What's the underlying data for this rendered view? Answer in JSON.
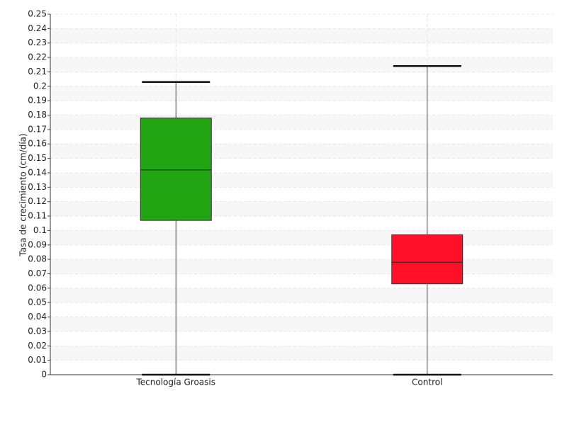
{
  "chart_data": {
    "type": "box",
    "y_label": "Tasa de crecimiento (cm/día)",
    "categories": [
      "Tecnología Groasis",
      "Control"
    ],
    "boxes": [
      {
        "min": 0,
        "q1": 0.107,
        "median": 0.142,
        "q3": 0.178,
        "max": 0.203,
        "color": "#22a512"
      },
      {
        "min": 0,
        "q1": 0.063,
        "median": 0.078,
        "q3": 0.097,
        "max": 0.214,
        "color": "#ff1028"
      }
    ],
    "ylim": [
      0,
      0.25
    ],
    "yticks": [
      0,
      0.01,
      0.02,
      0.03,
      0.04,
      0.05,
      0.06,
      0.07,
      0.08,
      0.09,
      0.1,
      0.11,
      0.12,
      0.13,
      0.14,
      0.15,
      0.16,
      0.17,
      0.18,
      0.19,
      0.2,
      0.21,
      0.22,
      0.23,
      0.24,
      0.25
    ],
    "grid": true
  }
}
